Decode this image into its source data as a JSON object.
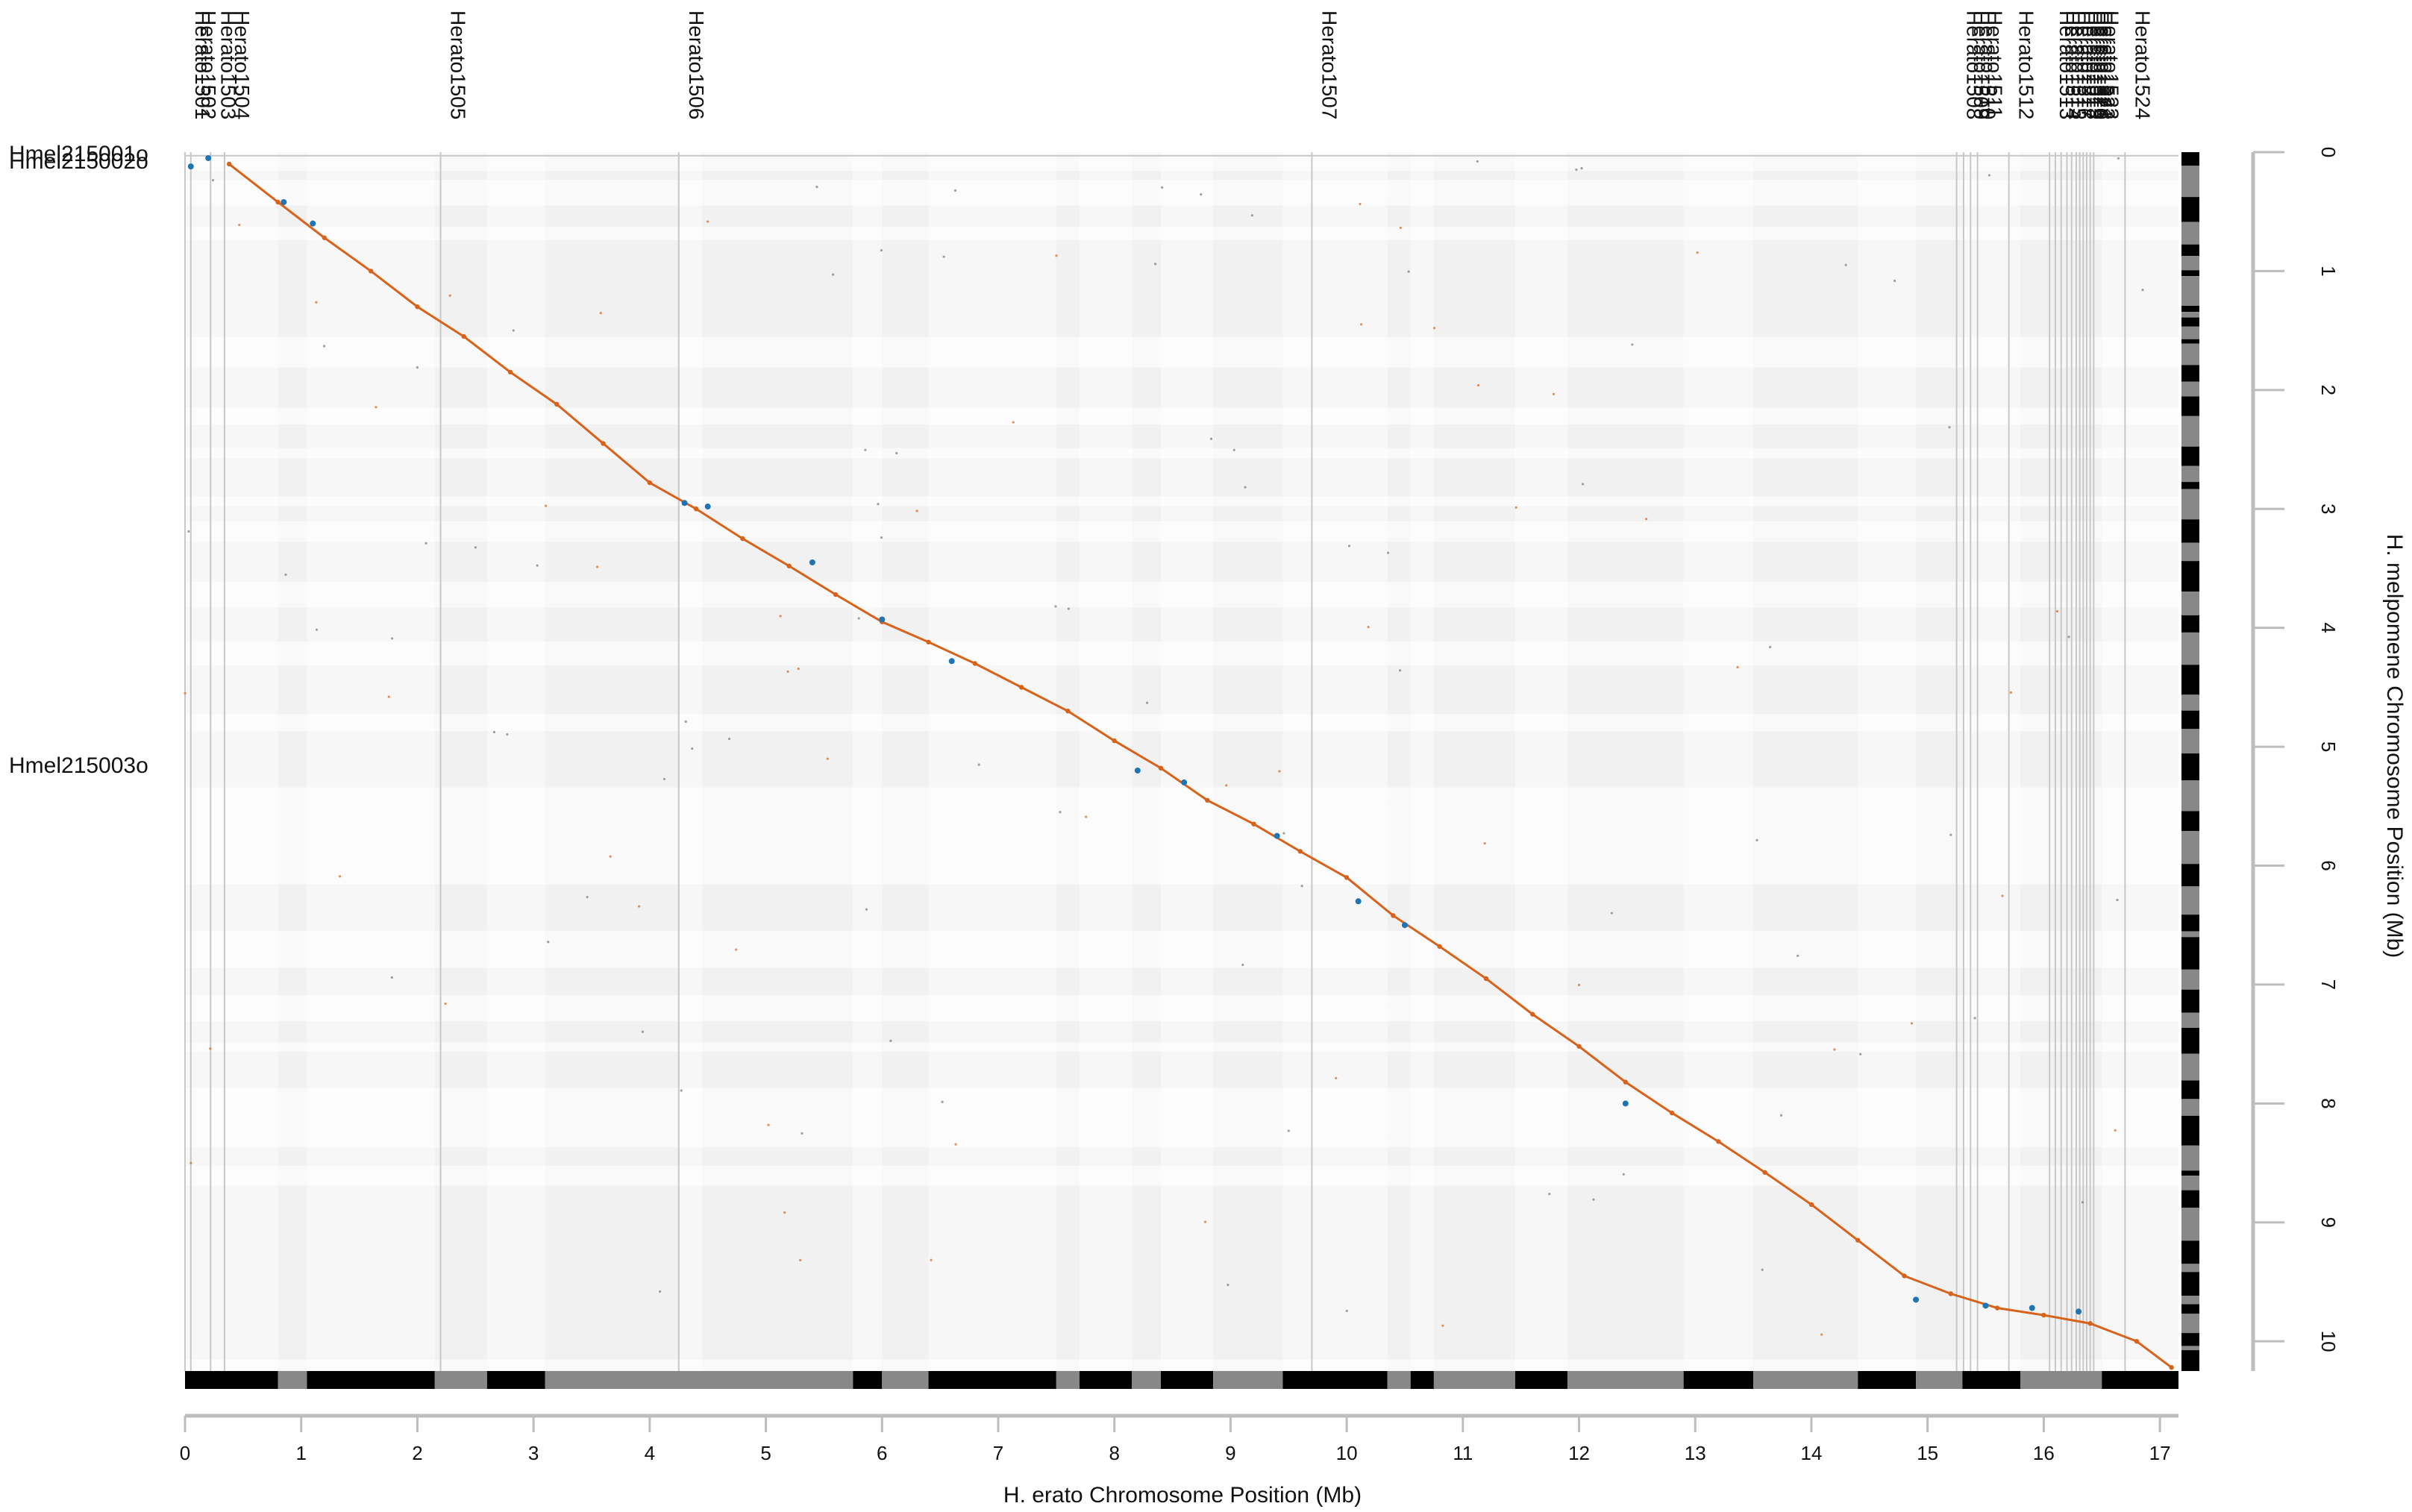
{
  "colors": {
    "forward": "#d8621a",
    "reverse": "#1f74b4",
    "axis": "#bdbdbd",
    "band_light": "#f5f5f5",
    "band_dark": "#ececec",
    "scaffold_dark": "#000000",
    "scaffold_mid": "#888888"
  },
  "chart_data": {
    "type": "scatter",
    "title": "",
    "xlabel": "H. erato Chromosome Position (Mb)",
    "ylabel": "H. melpomene Chromosome Position (Mb)",
    "xlim": [
      0,
      17.16
    ],
    "ylim": [
      10.25,
      0
    ],
    "x_ticks": [
      "0",
      "1",
      "2",
      "3",
      "4",
      "5",
      "6",
      "7",
      "8",
      "9",
      "10",
      "11",
      "12",
      "13",
      "14",
      "15",
      "16",
      "17"
    ],
    "y_ticks": [
      "0",
      "1",
      "2",
      "3",
      "4",
      "5",
      "6",
      "7",
      "8",
      "9",
      "10"
    ],
    "x_scaffolds": [
      {
        "name": "Herato1501",
        "start": 0.0
      },
      {
        "name": "Herato1502",
        "start": 0.05
      },
      {
        "name": "Herato1503",
        "start": 0.22
      },
      {
        "name": "Herato1504",
        "start": 0.34
      },
      {
        "name": "Herato1505",
        "start": 2.2
      },
      {
        "name": "Herato1506",
        "start": 4.25
      },
      {
        "name": "Herato1507",
        "start": 9.7
      },
      {
        "name": "Herato1508",
        "start": 15.25
      },
      {
        "name": "Herato1509",
        "start": 15.31
      },
      {
        "name": "Herato1510",
        "start": 15.37
      },
      {
        "name": "Herato1511",
        "start": 15.43
      },
      {
        "name": "Herato1512",
        "start": 15.7
      },
      {
        "name": "Herato1513",
        "start": 16.05
      },
      {
        "name": "Herato1514",
        "start": 16.1
      },
      {
        "name": "Herato1515",
        "start": 16.15
      },
      {
        "name": "Herato1516",
        "start": 16.2
      },
      {
        "name": "Herato1517",
        "start": 16.24
      },
      {
        "name": "Herato1518",
        "start": 16.28
      },
      {
        "name": "Herato1519",
        "start": 16.31
      },
      {
        "name": "Herato1520",
        "start": 16.34
      },
      {
        "name": "Herato1521",
        "start": 16.37
      },
      {
        "name": "Herato1522",
        "start": 16.4
      },
      {
        "name": "Herato1523",
        "start": 16.43
      },
      {
        "name": "Herato1524",
        "start": 16.7
      }
    ],
    "y_scaffolds": [
      {
        "name": "Hmel215001o",
        "start": 0.0
      },
      {
        "name": "Hmel215002o",
        "start": 0.03
      },
      {
        "name": "Hmel215003o",
        "start": 5.15
      }
    ],
    "series": [
      {
        "values": [
          {
            "x": 0.38,
            "y": 0.1
          },
          {
            "x": 0.8,
            "y": 0.42
          },
          {
            "x": 1.2,
            "y": 0.72
          },
          {
            "x": 1.6,
            "y": 1.0
          },
          {
            "x": 2.0,
            "y": 1.3
          },
          {
            "x": 2.4,
            "y": 1.55
          },
          {
            "x": 2.8,
            "y": 1.85
          },
          {
            "x": 3.2,
            "y": 2.12
          },
          {
            "x": 3.6,
            "y": 2.45
          },
          {
            "x": 4.0,
            "y": 2.78
          },
          {
            "x": 4.4,
            "y": 3.0
          },
          {
            "x": 4.8,
            "y": 3.25
          },
          {
            "x": 5.2,
            "y": 3.48
          },
          {
            "x": 5.6,
            "y": 3.72
          },
          {
            "x": 6.0,
            "y": 3.95
          },
          {
            "x": 6.4,
            "y": 4.12
          },
          {
            "x": 6.8,
            "y": 4.3
          },
          {
            "x": 7.2,
            "y": 4.5
          },
          {
            "x": 7.6,
            "y": 4.7
          },
          {
            "x": 8.0,
            "y": 4.95
          },
          {
            "x": 8.4,
            "y": 5.18
          },
          {
            "x": 8.8,
            "y": 5.45
          },
          {
            "x": 9.2,
            "y": 5.65
          },
          {
            "x": 9.6,
            "y": 5.88
          },
          {
            "x": 10.0,
            "y": 6.1
          },
          {
            "x": 10.4,
            "y": 6.42
          },
          {
            "x": 10.8,
            "y": 6.68
          },
          {
            "x": 11.2,
            "y": 6.95
          },
          {
            "x": 11.6,
            "y": 7.25
          },
          {
            "x": 12.0,
            "y": 7.52
          },
          {
            "x": 12.4,
            "y": 7.82
          },
          {
            "x": 12.8,
            "y": 8.08
          },
          {
            "x": 13.2,
            "y": 8.32
          },
          {
            "x": 13.6,
            "y": 8.58
          },
          {
            "x": 14.0,
            "y": 8.85
          },
          {
            "x": 14.4,
            "y": 9.15
          },
          {
            "x": 14.8,
            "y": 9.45
          },
          {
            "x": 15.2,
            "y": 9.6
          },
          {
            "x": 15.6,
            "y": 9.72
          },
          {
            "x": 16.0,
            "y": 9.78
          },
          {
            "x": 16.4,
            "y": 9.85
          },
          {
            "x": 16.8,
            "y": 10.0
          },
          {
            "x": 17.1,
            "y": 10.22
          }
        ]
      },
      {
        "values": [
          {
            "x": 0.05,
            "y": 0.12
          },
          {
            "x": 0.2,
            "y": 0.05
          },
          {
            "x": 0.85,
            "y": 0.42
          },
          {
            "x": 1.1,
            "y": 0.6
          },
          {
            "x": 4.3,
            "y": 2.95
          },
          {
            "x": 4.5,
            "y": 2.98
          },
          {
            "x": 5.4,
            "y": 3.45
          },
          {
            "x": 6.0,
            "y": 3.93
          },
          {
            "x": 6.6,
            "y": 4.28
          },
          {
            "x": 8.2,
            "y": 5.2
          },
          {
            "x": 8.6,
            "y": 5.3
          },
          {
            "x": 9.4,
            "y": 5.75
          },
          {
            "x": 10.1,
            "y": 6.3
          },
          {
            "x": 10.5,
            "y": 6.5
          },
          {
            "x": 12.4,
            "y": 8.0
          },
          {
            "x": 14.9,
            "y": 9.65
          },
          {
            "x": 15.5,
            "y": 9.7
          },
          {
            "x": 15.9,
            "y": 9.72
          },
          {
            "x": 16.3,
            "y": 9.75
          }
        ]
      }
    ],
    "grid": true
  }
}
